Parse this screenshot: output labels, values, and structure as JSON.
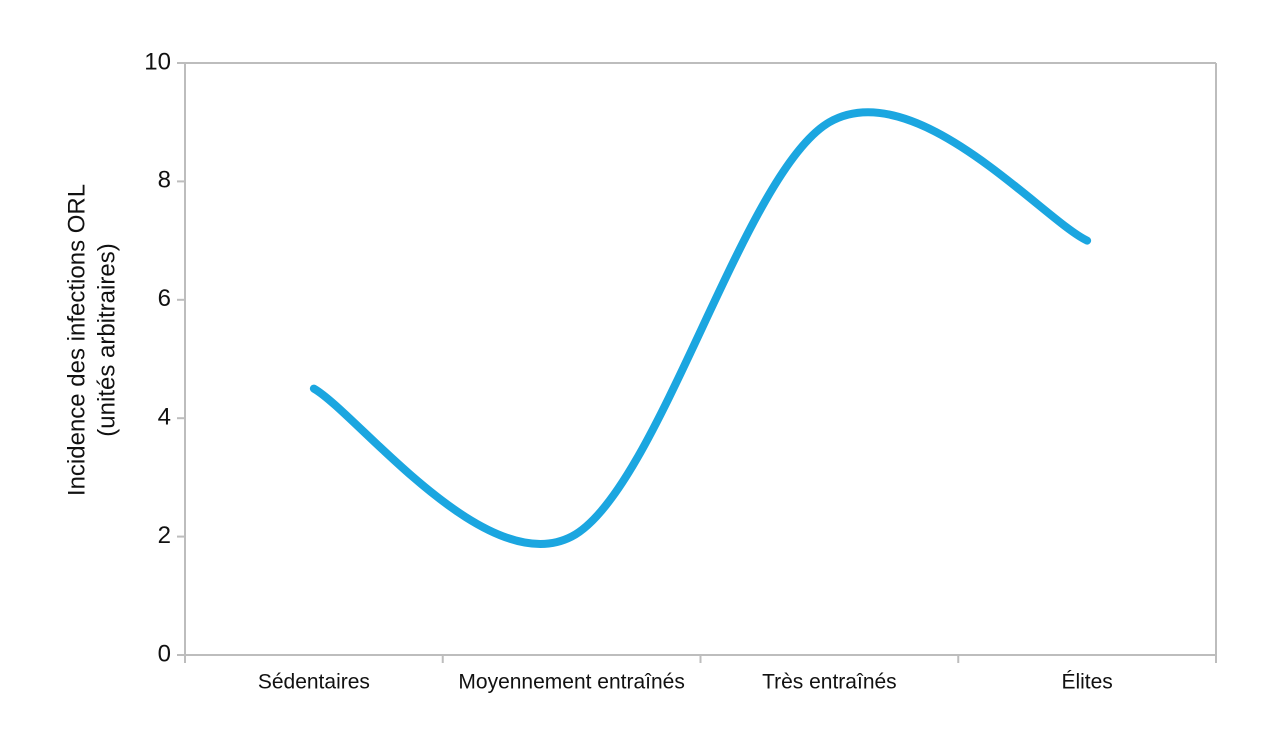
{
  "chart_data": {
    "type": "line",
    "ylabel": "Incidence des infections ORL",
    "ylabel_sub": "(unités arbitraires)",
    "categories": [
      "Sédentaires",
      "Moyennement entraînés",
      "Très entraînés",
      "Élites"
    ],
    "series": [
      {
        "name": "Incidence",
        "color": "#1ba6e0",
        "values": [
          4.5,
          2.0,
          9.0,
          7.0
        ]
      }
    ],
    "ylim": [
      0,
      10
    ],
    "yticks": [
      0,
      2,
      4,
      6,
      8,
      10
    ],
    "smooth": true
  }
}
